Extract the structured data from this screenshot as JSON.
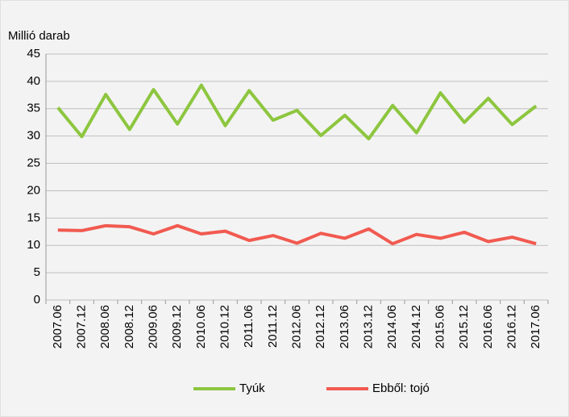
{
  "chart_data": {
    "type": "line",
    "y_axis_label": "Millió darab",
    "categories": [
      "2007.06",
      "2007.12",
      "2008.06",
      "2008.12",
      "2009.06",
      "2009.12",
      "2010.06",
      "2010.12",
      "2011.06",
      "2011.12",
      "2012.06",
      "2012.12",
      "2013.06",
      "2013.12",
      "2014.06",
      "2014.12",
      "2015.06",
      "2015.12",
      "2016.06",
      "2016.12",
      "2017.06"
    ],
    "series": [
      {
        "name": "Tyúk",
        "color": "#8dc63f",
        "values": [
          35.2,
          29.9,
          37.6,
          31.2,
          38.5,
          32.2,
          39.3,
          31.9,
          38.3,
          32.9,
          34.7,
          30.1,
          33.8,
          29.5,
          35.6,
          30.6,
          37.9,
          32.5,
          36.9,
          32.1,
          35.5
        ]
      },
      {
        "name": "Ebből: tojó",
        "color": "#f15a50",
        "values": [
          12.8,
          12.7,
          13.6,
          13.4,
          12.1,
          13.6,
          12.1,
          12.6,
          10.9,
          11.8,
          10.4,
          12.2,
          11.3,
          13.0,
          10.3,
          12.0,
          11.3,
          12.4,
          10.7,
          11.5,
          10.3
        ]
      }
    ],
    "ylim": [
      0,
      45
    ],
    "yticks": [
      0,
      5,
      10,
      15,
      20,
      25,
      30,
      35,
      40,
      45
    ],
    "grid": true,
    "legend": "bottom"
  }
}
